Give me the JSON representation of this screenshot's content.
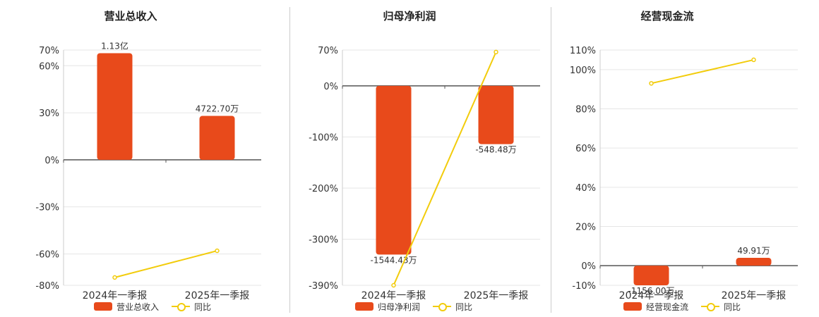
{
  "colors": {
    "bar": "#e84a1b",
    "line": "#f2cc0c",
    "grid": "#e6e6e6",
    "axis": "#555555"
  },
  "chart_data": [
    {
      "type": "bar",
      "title": "营业总收入",
      "categories": [
        "2024年一季报",
        "2025年一季报"
      ],
      "series": [
        {
          "name": "营业总收入",
          "kind": "bar",
          "values": [
            68,
            28
          ],
          "labels": [
            "1.13亿",
            "4722.70万"
          ]
        },
        {
          "name": "同比",
          "kind": "line",
          "values": [
            -75,
            -58
          ]
        }
      ],
      "ylim": [
        -80,
        70
      ],
      "yticks": [
        -80,
        -60,
        -30,
        0,
        30,
        60,
        70
      ],
      "ytick_labels": [
        "-80%",
        "-60%",
        "-30%",
        "0%",
        "30%",
        "60%",
        "70%"
      ],
      "grid": true,
      "legend": "bottom"
    },
    {
      "type": "bar",
      "title": "归母净利润",
      "categories": [
        "2024年一季报",
        "2025年一季报"
      ],
      "series": [
        {
          "name": "归母净利润",
          "kind": "bar",
          "values": [
            -330,
            -114
          ],
          "labels": [
            "-1544.43万",
            "-548.48万"
          ]
        },
        {
          "name": "同比",
          "kind": "line",
          "values": [
            -390,
            66
          ]
        }
      ],
      "ylim": [
        -390,
        70
      ],
      "yticks": [
        -390,
        -300,
        -200,
        -100,
        0,
        70
      ],
      "ytick_labels": [
        "-390%",
        "-300%",
        "-200%",
        "-100%",
        "0%",
        "70%"
      ],
      "grid": true,
      "legend": "bottom"
    },
    {
      "type": "bar",
      "title": "经营现金流",
      "categories": [
        "2024年一季报",
        "2025年一季报"
      ],
      "series": [
        {
          "name": "经营现金流",
          "kind": "bar",
          "values": [
            -10,
            4
          ],
          "labels": [
            "-1156.00万",
            "49.91万"
          ]
        },
        {
          "name": "同比",
          "kind": "line",
          "values": [
            93,
            105
          ]
        }
      ],
      "ylim": [
        -10,
        110
      ],
      "yticks": [
        -10,
        0,
        20,
        40,
        60,
        80,
        100,
        110
      ],
      "ytick_labels": [
        "-10%",
        "0%",
        "20%",
        "40%",
        "60%",
        "80%",
        "100%",
        "110%"
      ],
      "grid": true,
      "legend": "bottom"
    }
  ]
}
